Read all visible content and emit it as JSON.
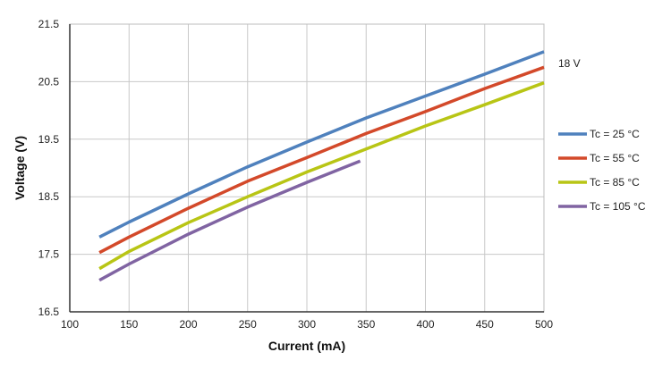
{
  "chart_data": {
    "type": "line",
    "title": "",
    "xlabel": "Current (mA)",
    "ylabel": "Voltage (V)",
    "xlim": [
      100,
      500
    ],
    "ylim": [
      16.5,
      21.5
    ],
    "xticks": [
      "100",
      "150",
      "200",
      "250",
      "300",
      "350",
      "400",
      "450",
      "500"
    ],
    "yticks": [
      "16.5",
      "17.5",
      "18.5",
      "19.5",
      "20.5",
      "21.5"
    ],
    "grid": true,
    "legend_position": "right",
    "annotation": "18 V",
    "series": [
      {
        "name": "Tc = 25 °C",
        "color": "#4f81bd",
        "x": [
          125,
          150,
          200,
          250,
          300,
          350,
          400,
          450,
          500
        ],
        "y": [
          17.8,
          18.06,
          18.55,
          19.02,
          19.45,
          19.87,
          20.25,
          20.63,
          21.02
        ]
      },
      {
        "name": "Tc = 55 °C",
        "color": "#d3492a",
        "x": [
          125,
          150,
          200,
          250,
          300,
          350,
          400,
          450,
          500
        ],
        "y": [
          17.53,
          17.8,
          18.3,
          18.77,
          19.18,
          19.6,
          19.98,
          20.38,
          20.75
        ]
      },
      {
        "name": "Tc = 85 °C",
        "color": "#b8c515",
        "x": [
          125,
          150,
          200,
          250,
          300,
          350,
          400,
          450,
          500
        ],
        "y": [
          17.25,
          17.55,
          18.05,
          18.5,
          18.93,
          19.33,
          19.73,
          20.1,
          20.48
        ]
      },
      {
        "name": "Tc = 105 °C",
        "color": "#8064a2",
        "x": [
          125,
          150,
          200,
          250,
          300,
          345
        ],
        "y": [
          17.05,
          17.33,
          17.85,
          18.32,
          18.75,
          19.12
        ]
      }
    ]
  }
}
